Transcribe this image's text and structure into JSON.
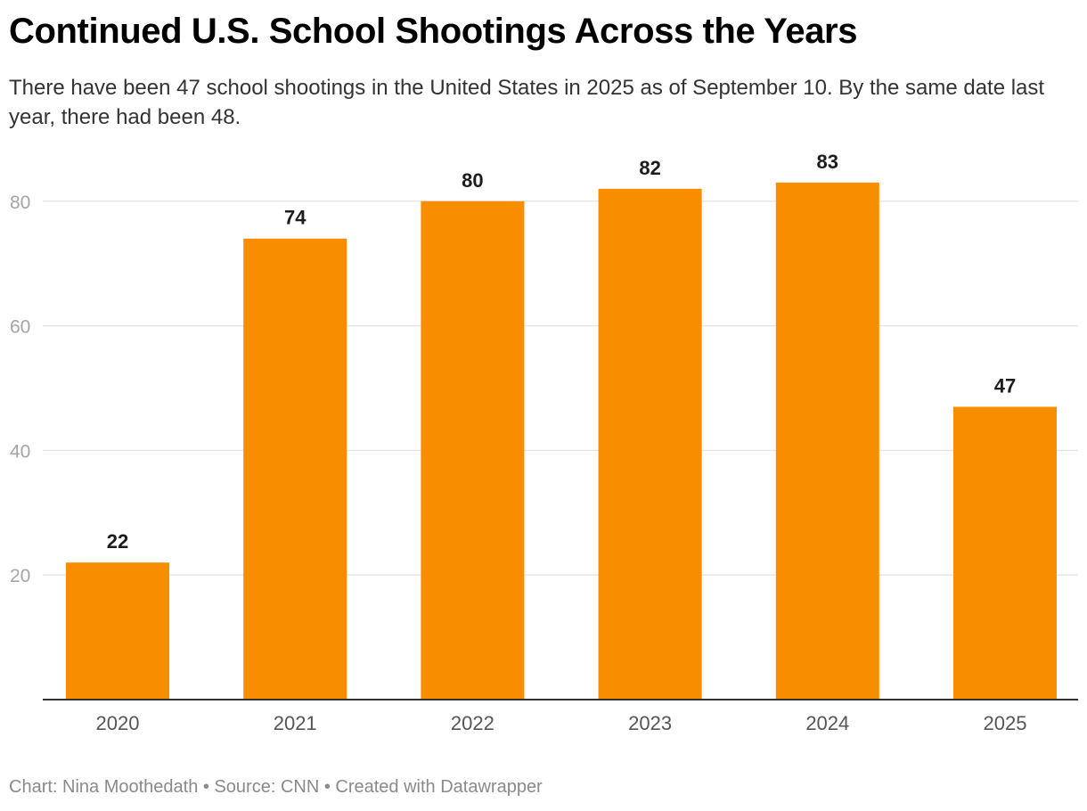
{
  "header": {
    "title": "Continued U.S. School Shootings Across the Years",
    "subtitle": "There have been 47 school shootings in the United States in 2025 as of September 10. By the same date last year, there had been 48."
  },
  "footer": {
    "credit": "Chart: Nina Moothedath • Source: CNN • Created with Datawrapper"
  },
  "colors": {
    "bar": "#f88d00",
    "grid": "#e4e4e4",
    "axis": "#333333"
  },
  "chart_data": {
    "type": "bar",
    "title": "Continued U.S. School Shootings Across the Years",
    "xlabel": "",
    "ylabel": "",
    "categories": [
      "2020",
      "2021",
      "2022",
      "2023",
      "2024",
      "2025"
    ],
    "values": [
      22,
      74,
      80,
      82,
      83,
      47
    ],
    "value_labels": [
      "22",
      "74",
      "80",
      "82",
      "83",
      "47"
    ],
    "ylim": [
      0,
      88
    ],
    "yticks": [
      20,
      40,
      60,
      80
    ],
    "ytick_labels": [
      "20",
      "40",
      "60",
      "80"
    ],
    "grid": true,
    "legend": "none"
  }
}
